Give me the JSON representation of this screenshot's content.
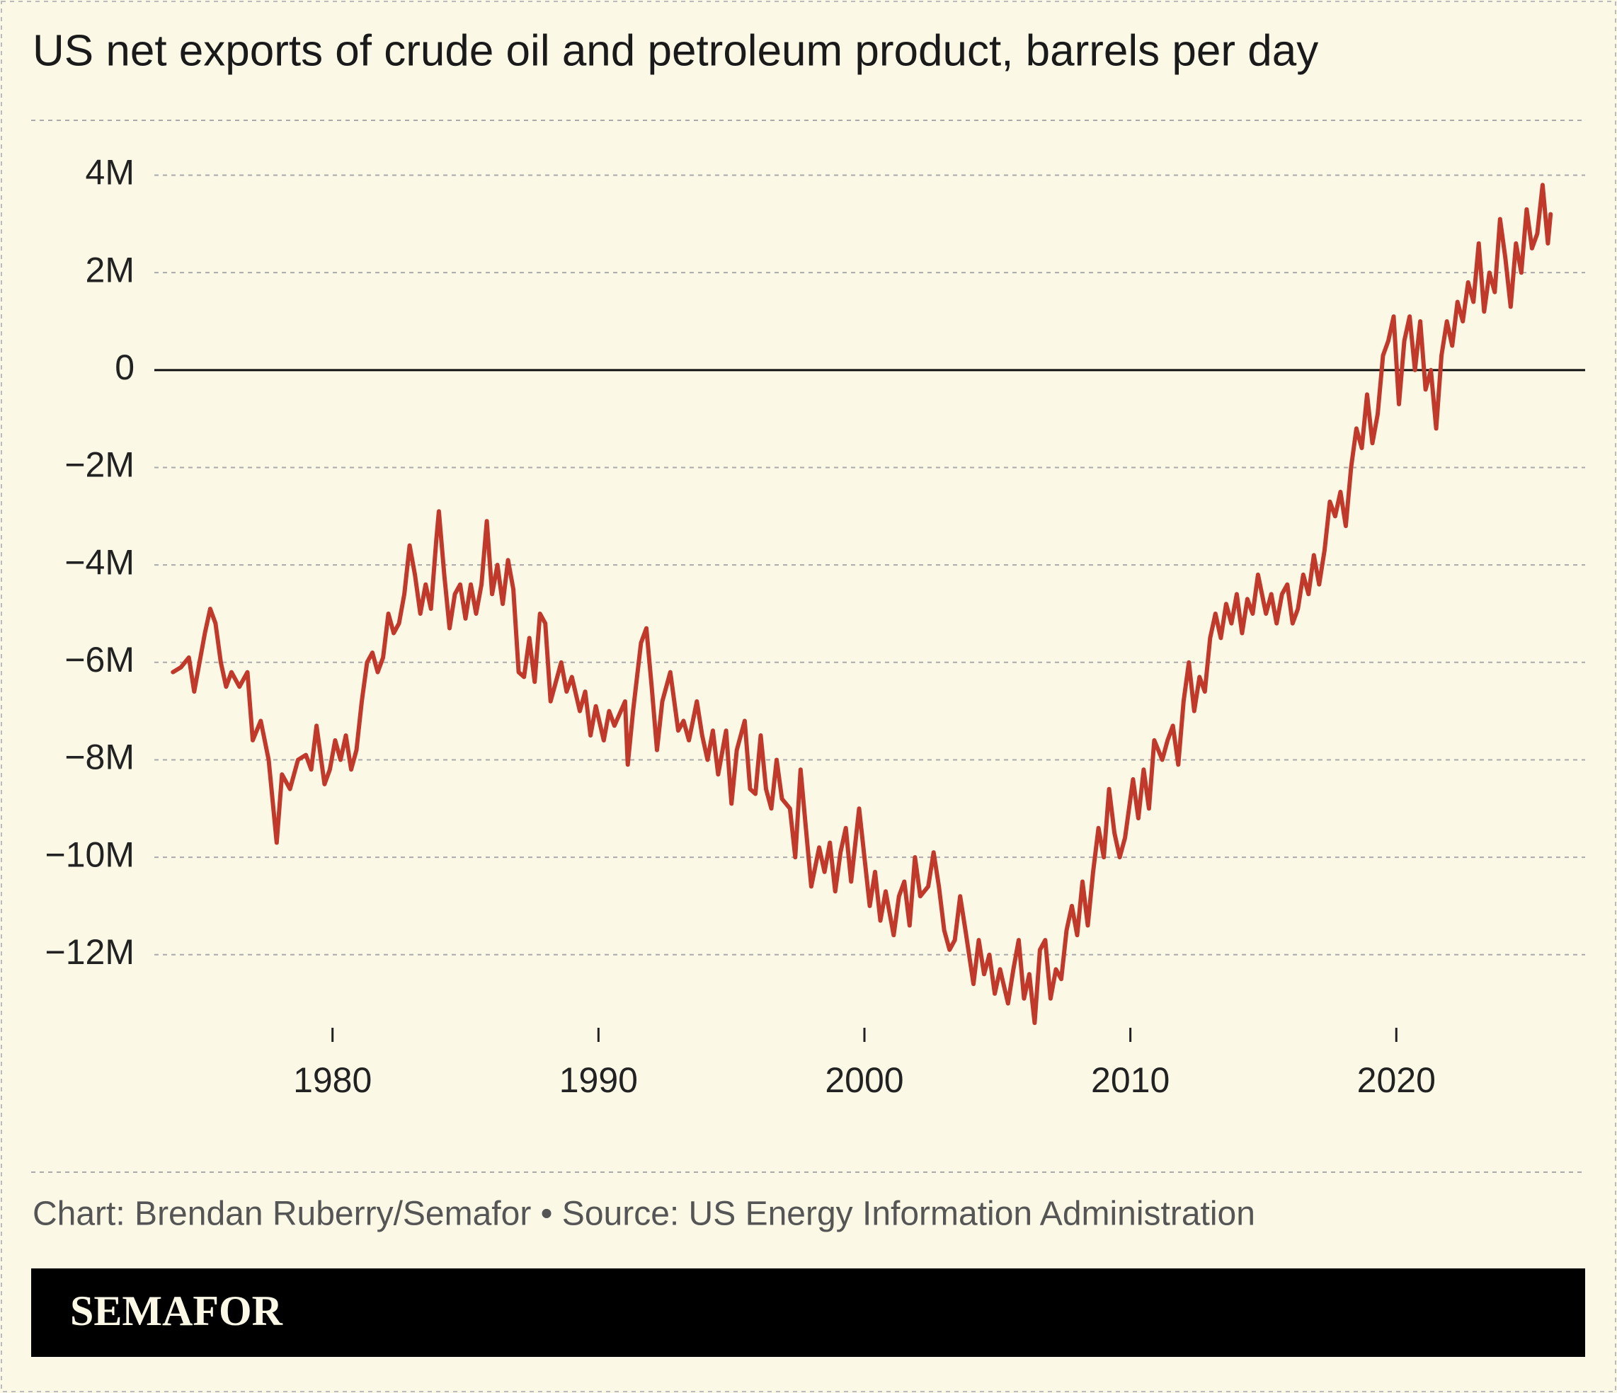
{
  "chart_data": {
    "type": "line",
    "title": "US net exports of crude oil and petroleum product, barrels per day",
    "credit": "Chart: Brendan Ruberry/Semafor • Source: US Energy Information Administration",
    "brand": "SEMAFOR",
    "grid": true,
    "xlim": [
      1973.3,
      2027.1
    ],
    "xticks": [
      1980,
      1990,
      2000,
      2010,
      2020
    ],
    "ylim": [
      -13500000,
      4400000
    ],
    "yticks": [
      {
        "value": 4000000,
        "label": "4M"
      },
      {
        "value": 2000000,
        "label": "2M"
      },
      0,
      {
        "value": -2000000,
        "label": "−2M"
      },
      {
        "value": -4000000,
        "label": "−4M"
      },
      {
        "value": -6000000,
        "label": "−6M"
      },
      {
        "value": -8000000,
        "label": "−8M"
      },
      {
        "value": -10000000,
        "label": "−10M"
      },
      {
        "value": -12000000,
        "label": "−12M"
      }
    ],
    "x": [
      1974.0,
      1974.3,
      1974.6,
      1974.8,
      1975.2,
      1975.4,
      1975.6,
      1975.8,
      1976.0,
      1976.2,
      1976.5,
      1976.8,
      1977.0,
      1977.3,
      1977.6,
      1977.9,
      1978.1,
      1978.4,
      1978.7,
      1979.0,
      1979.2,
      1979.4,
      1979.7,
      1979.9,
      1980.1,
      1980.3,
      1980.5,
      1980.7,
      1980.9,
      1981.1,
      1981.3,
      1981.5,
      1981.7,
      1981.9,
      1982.1,
      1982.3,
      1982.5,
      1982.7,
      1982.9,
      1983.1,
      1983.3,
      1983.5,
      1983.7,
      1983.9,
      1984.0,
      1984.2,
      1984.4,
      1984.6,
      1984.8,
      1985.0,
      1985.2,
      1985.4,
      1985.6,
      1985.8,
      1986.0,
      1986.2,
      1986.4,
      1986.6,
      1986.8,
      1987.0,
      1987.2,
      1987.4,
      1987.6,
      1987.8,
      1988.0,
      1988.2,
      1988.4,
      1988.6,
      1988.8,
      1989.0,
      1989.3,
      1989.5,
      1989.7,
      1989.9,
      1990.2,
      1990.4,
      1990.6,
      1991.0,
      1991.1,
      1991.3,
      1991.6,
      1991.8,
      1992.0,
      1992.2,
      1992.4,
      1992.7,
      1993.0,
      1993.2,
      1993.4,
      1993.7,
      1993.9,
      1994.1,
      1994.3,
      1994.5,
      1994.8,
      1995.0,
      1995.2,
      1995.5,
      1995.7,
      1995.9,
      1996.1,
      1996.3,
      1996.5,
      1996.7,
      1996.9,
      1997.2,
      1997.4,
      1997.6,
      1997.8,
      1998.0,
      1998.3,
      1998.5,
      1998.7,
      1998.9,
      1999.1,
      1999.3,
      1999.5,
      1999.8,
      2000.0,
      2000.2,
      2000.4,
      2000.6,
      2000.8,
      2001.1,
      2001.3,
      2001.5,
      2001.7,
      2001.9,
      2002.1,
      2002.4,
      2002.6,
      2002.8,
      2003.0,
      2003.2,
      2003.4,
      2003.6,
      2003.8,
      2004.1,
      2004.3,
      2004.5,
      2004.7,
      2004.9,
      2005.1,
      2005.4,
      2005.6,
      2005.8,
      2006.0,
      2006.2,
      2006.4,
      2006.6,
      2006.8,
      2007.0,
      2007.2,
      2007.4,
      2007.6,
      2007.8,
      2008.0,
      2008.2,
      2008.4,
      2008.6,
      2008.8,
      2009.0,
      2009.2,
      2009.4,
      2009.6,
      2009.8,
      2010.1,
      2010.3,
      2010.5,
      2010.7,
      2010.9,
      2011.2,
      2011.4,
      2011.6,
      2011.8,
      2012.0,
      2012.2,
      2012.4,
      2012.6,
      2012.8,
      2013.0,
      2013.2,
      2013.4,
      2013.6,
      2013.8,
      2014.0,
      2014.2,
      2014.4,
      2014.6,
      2014.8,
      2015.1,
      2015.3,
      2015.5,
      2015.7,
      2015.9,
      2016.1,
      2016.3,
      2016.5,
      2016.7,
      2016.9,
      2017.1,
      2017.3,
      2017.5,
      2017.7,
      2017.9,
      2018.1,
      2018.3,
      2018.5,
      2018.7,
      2018.9,
      2019.1,
      2019.3,
      2019.5,
      2019.7,
      2019.9,
      2020.1,
      2020.3,
      2020.5,
      2020.7,
      2020.9,
      2021.1,
      2021.3,
      2021.5,
      2021.7,
      2021.9,
      2022.1,
      2022.3,
      2022.5,
      2022.7,
      2022.9,
      2023.1,
      2023.3,
      2023.5,
      2023.7,
      2023.9,
      2024.1,
      2024.3,
      2024.5,
      2024.7,
      2024.9,
      2025.1,
      2025.3,
      2025.5,
      2025.7,
      2025.8
    ],
    "series": [
      {
        "name": "US net exports",
        "color": "#c0392b",
        "values": [
          -6200000,
          -6100000,
          -5900000,
          -6600000,
          -5400000,
          -4900000,
          -5200000,
          -6000000,
          -6500000,
          -6200000,
          -6500000,
          -6200000,
          -7600000,
          -7200000,
          -8000000,
          -9700000,
          -8300000,
          -8600000,
          -8000000,
          -7900000,
          -8200000,
          -7300000,
          -8500000,
          -8200000,
          -7600000,
          -8000000,
          -7500000,
          -8200000,
          -7800000,
          -6800000,
          -6000000,
          -5800000,
          -6200000,
          -5900000,
          -5000000,
          -5400000,
          -5200000,
          -4600000,
          -3600000,
          -4200000,
          -5000000,
          -4400000,
          -4900000,
          -3500000,
          -2900000,
          -4200000,
          -5300000,
          -4600000,
          -4400000,
          -5100000,
          -4400000,
          -5000000,
          -4400000,
          -3100000,
          -4600000,
          -4000000,
          -4800000,
          -3900000,
          -4500000,
          -6200000,
          -6300000,
          -5500000,
          -6400000,
          -5000000,
          -5200000,
          -6800000,
          -6400000,
          -6000000,
          -6600000,
          -6300000,
          -7000000,
          -6600000,
          -7500000,
          -6900000,
          -7600000,
          -7000000,
          -7300000,
          -6800000,
          -8100000,
          -7000000,
          -5600000,
          -5300000,
          -6500000,
          -7800000,
          -6800000,
          -6200000,
          -7400000,
          -7200000,
          -7600000,
          -6800000,
          -7500000,
          -8000000,
          -7400000,
          -8300000,
          -7400000,
          -8900000,
          -7800000,
          -7200000,
          -8600000,
          -8700000,
          -7500000,
          -8600000,
          -9000000,
          -8000000,
          -8800000,
          -9000000,
          -10000000,
          -8200000,
          -9400000,
          -10600000,
          -9800000,
          -10300000,
          -9700000,
          -10700000,
          -9900000,
          -9400000,
          -10500000,
          -9000000,
          -10000000,
          -11000000,
          -10300000,
          -11300000,
          -10700000,
          -11600000,
          -10800000,
          -10500000,
          -11400000,
          -10000000,
          -10800000,
          -10600000,
          -9900000,
          -10600000,
          -11500000,
          -11900000,
          -11700000,
          -10800000,
          -11500000,
          -12600000,
          -11700000,
          -12400000,
          -12000000,
          -12800000,
          -12300000,
          -13000000,
          -12300000,
          -11700000,
          -12900000,
          -12400000,
          -13400000,
          -11900000,
          -11700000,
          -12900000,
          -12300000,
          -12500000,
          -11500000,
          -11000000,
          -11600000,
          -10500000,
          -11400000,
          -10300000,
          -9400000,
          -10000000,
          -8600000,
          -9500000,
          -10000000,
          -9600000,
          -8400000,
          -9200000,
          -8200000,
          -9000000,
          -7600000,
          -8000000,
          -7600000,
          -7300000,
          -8100000,
          -6800000,
          -6000000,
          -7000000,
          -6300000,
          -6600000,
          -5500000,
          -5000000,
          -5500000,
          -4800000,
          -5200000,
          -4600000,
          -5400000,
          -4700000,
          -5000000,
          -4200000,
          -5000000,
          -4600000,
          -5200000,
          -4600000,
          -4400000,
          -5200000,
          -4900000,
          -4200000,
          -4600000,
          -3800000,
          -4400000,
          -3700000,
          -2700000,
          -3000000,
          -2500000,
          -3200000,
          -2000000,
          -1200000,
          -1600000,
          -500000,
          -1500000,
          -900000,
          300000,
          600000,
          1100000,
          -700000,
          600000,
          1100000,
          0,
          1000000,
          -400000,
          0,
          -1200000,
          300000,
          1000000,
          500000,
          1400000,
          1000000,
          1800000,
          1400000,
          2600000,
          1200000,
          2000000,
          1600000,
          3100000,
          2300000,
          1300000,
          2600000,
          2000000,
          3300000,
          2500000,
          2800000,
          3800000,
          2600000,
          3200000
        ]
      }
    ]
  }
}
